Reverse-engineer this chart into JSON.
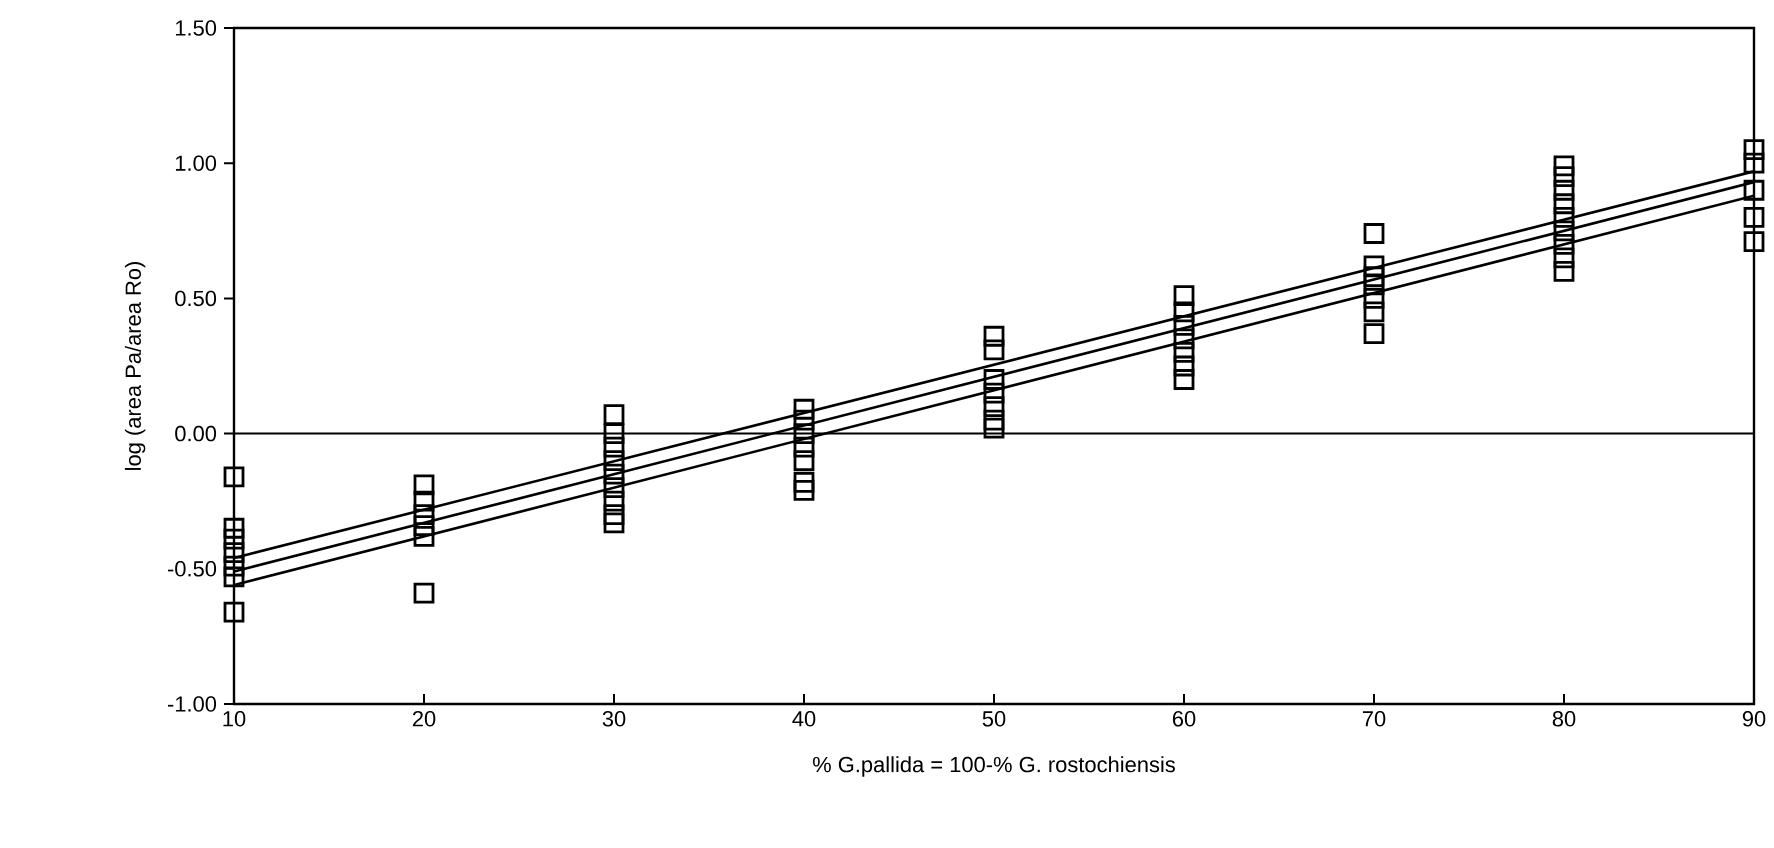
{
  "chart_data": {
    "type": "scatter",
    "xlabel": "% G.pallida = 100-% G. rostochiensis",
    "ylabel": "log (area Pa/area Ro)",
    "xlim": [
      10,
      90
    ],
    "xticks": [
      10,
      20,
      30,
      40,
      50,
      60,
      70,
      80,
      90
    ],
    "ylim": [
      -1,
      1.5
    ],
    "yticks": [
      {
        "value": -1,
        "label": "-1.00"
      },
      {
        "value": -0.5,
        "label": "-0.50"
      },
      {
        "value": 0,
        "label": "0.00"
      },
      {
        "value": 0.5,
        "label": "0.50"
      },
      {
        "value": 1,
        "label": "1.00"
      },
      {
        "value": 1.5,
        "label": "1.50"
      }
    ],
    "marker": "square",
    "ref_lines": [
      {
        "axis": "y",
        "value": 0
      }
    ],
    "series": [
      {
        "color": "#000000",
        "x": [
          10,
          10,
          10,
          10,
          10,
          10,
          10,
          20,
          20,
          20,
          20,
          20,
          20,
          30,
          30,
          30,
          30,
          30,
          30,
          30,
          30,
          30,
          40,
          40,
          40,
          40,
          40,
          40,
          40,
          50,
          50,
          50,
          50,
          50,
          50,
          50,
          60,
          60,
          60,
          60,
          60,
          60,
          60,
          70,
          70,
          70,
          70,
          70,
          70,
          70,
          80,
          80,
          80,
          80,
          80,
          80,
          80,
          80,
          80,
          90,
          90,
          90,
          90,
          90
        ],
        "values": [
          -0.16,
          -0.35,
          -0.39,
          -0.44,
          -0.49,
          -0.53,
          -0.66,
          -0.19,
          -0.25,
          -0.3,
          -0.34,
          -0.38,
          -0.59,
          0.07,
          0.0,
          -0.05,
          -0.1,
          -0.15,
          -0.2,
          -0.25,
          -0.3,
          -0.33,
          0.09,
          0.05,
          0.0,
          -0.05,
          -0.1,
          -0.18,
          -0.21,
          0.36,
          0.31,
          0.2,
          0.15,
          0.1,
          0.05,
          0.02,
          0.51,
          0.45,
          0.4,
          0.35,
          0.3,
          0.25,
          0.2,
          0.74,
          0.62,
          0.58,
          0.55,
          0.5,
          0.45,
          0.37,
          0.99,
          0.95,
          0.9,
          0.85,
          0.8,
          0.75,
          0.7,
          0.65,
          0.6,
          1.05,
          1.0,
          0.9,
          0.8,
          0.71
        ]
      },
      {
        "type": "line",
        "marker": "none",
        "line_style": "solid",
        "color": "#000000",
        "x": [
          10,
          90
        ],
        "values": [
          -0.46,
          0.97
        ]
      },
      {
        "type": "line",
        "marker": "none",
        "line_style": "solid",
        "color": "#000000",
        "x": [
          10,
          90
        ],
        "values": [
          -0.51,
          0.93
        ]
      },
      {
        "type": "line",
        "marker": "none",
        "line_style": "solid",
        "color": "#000000",
        "x": [
          10,
          90
        ],
        "values": [
          -0.56,
          0.88
        ]
      }
    ]
  }
}
